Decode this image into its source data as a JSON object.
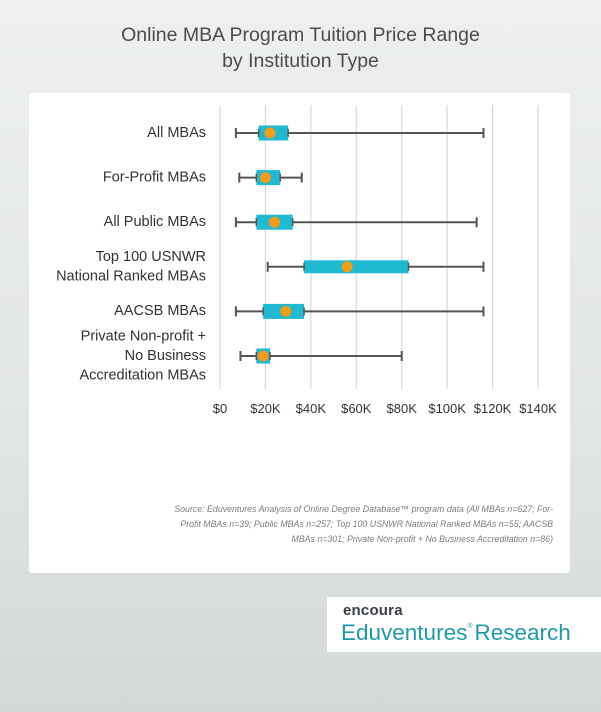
{
  "title": {
    "line1": "Online MBA Program Tuition Price Range",
    "line2": "by Institution Type"
  },
  "source_note": "Source: Eduventures Analysis of Online Degree Database™ program data (All MBAs n=627; For-Profit MBAs n=39; Public MBAs n=257; Top 100 USNWR National Ranked MBAs n=55; AACSB MBAs n=301; Private Non-profit + No Business Accreditation n=86)",
  "logo": {
    "brand": "encoura",
    "product": "Eduventures",
    "registered_mark": "®",
    "suffix": "Research"
  },
  "colors": {
    "box": "#1fb9d1",
    "median": "#f39c18",
    "whisker": "#555555",
    "grid": "#d9d9d9",
    "logo_text": "#1f9aaa"
  },
  "chart_data": {
    "type": "boxplot",
    "title": "Online MBA Program Tuition Price Range by Institution Type",
    "xlabel": "",
    "ylabel": "",
    "xlim": [
      0,
      140000
    ],
    "x_ticks": [
      0,
      20000,
      40000,
      60000,
      80000,
      100000,
      120000,
      140000
    ],
    "x_tick_labels": [
      "$0",
      "$20K",
      "$40K",
      "$60K",
      "$80K",
      "$100K",
      "$120K",
      "$140K"
    ],
    "grid": "vertical",
    "categories": [
      [
        "All MBAs"
      ],
      [
        "For-Profit MBAs"
      ],
      [
        "All Public MBAs"
      ],
      [
        "Top 100 USNWR",
        "National Ranked MBAs"
      ],
      [
        "AACSB MBAs"
      ],
      [
        "Private Non-profit +",
        "No Business",
        "Accreditation MBAs"
      ]
    ],
    "series": [
      {
        "min": 7000,
        "q1": 17000,
        "median": 22000,
        "q3": 30000,
        "max": 116000
      },
      {
        "min": 8500,
        "q1": 16000,
        "median": 20000,
        "q3": 26500,
        "max": 36000
      },
      {
        "min": 7000,
        "q1": 16000,
        "median": 24000,
        "q3": 32000,
        "max": 113000
      },
      {
        "min": 21000,
        "q1": 37000,
        "median": 56000,
        "q3": 83000,
        "max": 116000
      },
      {
        "min": 7000,
        "q1": 19000,
        "median": 29000,
        "q3": 37000,
        "max": 116000
      },
      {
        "min": 9000,
        "q1": 16000,
        "median": 19000,
        "q3": 22000,
        "max": 80000
      }
    ]
  }
}
